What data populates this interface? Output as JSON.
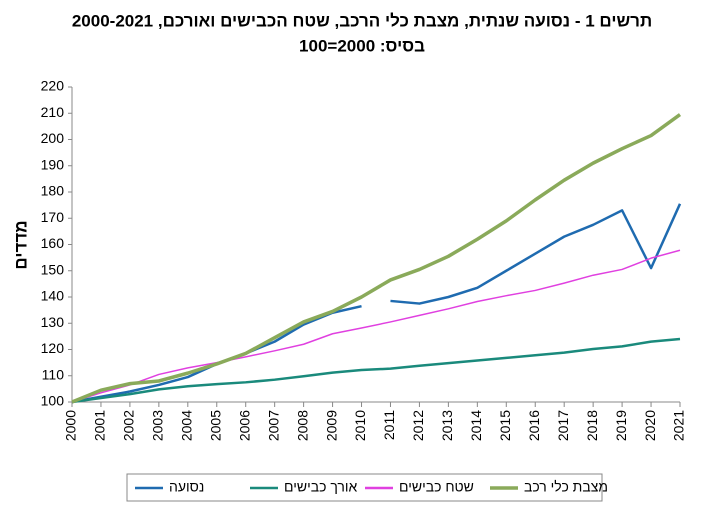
{
  "chart_data": {
    "type": "line",
    "title": "תרשים 1 - נסועה שנתית, מצבת כלי הרכב, שטח הכבישים ואורכם, 2000-2021",
    "subtitle": "בסיס: 2000=100",
    "y_label": "מדדים",
    "x": [
      2000,
      2001,
      2002,
      2003,
      2004,
      2005,
      2006,
      2007,
      2008,
      2009,
      2010,
      2011,
      2012,
      2013,
      2014,
      2015,
      2016,
      2017,
      2018,
      2019,
      2020,
      2021
    ],
    "xlim": [
      2000,
      2021
    ],
    "ylim": [
      100,
      220
    ],
    "yticks": [
      100,
      110,
      120,
      130,
      140,
      150,
      160,
      170,
      180,
      190,
      200,
      210,
      220
    ],
    "legend": "bottom",
    "series": [
      {
        "name": "נסועה",
        "color": "#1f6bb0",
        "x": [
          2000,
          2001,
          2002,
          2003,
          2004,
          2005,
          2006,
          2007,
          2008,
          2009,
          2010,
          null,
          2011,
          2012,
          2013,
          2014,
          2015,
          2016,
          2017,
          2018,
          2019,
          2020,
          2021
        ],
        "values": [
          100,
          102,
          104,
          106.5,
          109.5,
          114.5,
          118.5,
          123,
          129.5,
          134,
          136.5,
          null,
          138.5,
          137.5,
          140,
          143.5,
          150,
          156.5,
          163,
          167.5,
          173,
          151,
          175.5
        ]
      },
      {
        "name": "אורך כבישים",
        "color": "#1a8a7c",
        "values": [
          100,
          101.5,
          103,
          104.8,
          106,
          106.8,
          107.5,
          108.5,
          109.8,
          111.2,
          112.2,
          112.7,
          113.8,
          114.8,
          115.8,
          116.8,
          117.8,
          118.8,
          120.2,
          121.2,
          123,
          124
        ]
      },
      {
        "name": "שטח כבישים",
        "color": "#e040e0",
        "values": [
          100,
          103.5,
          106.5,
          110.5,
          113,
          115,
          117.2,
          119.5,
          122,
          126,
          128.2,
          130.5,
          133,
          135.5,
          138.3,
          140.5,
          142.5,
          145.3,
          148.3,
          150.5,
          154.8,
          157.8
        ]
      },
      {
        "name": "מצבת כלי רכב",
        "color": "#8aaa5a",
        "values": [
          100,
          104.5,
          107,
          108,
          111,
          114.5,
          118.5,
          124.5,
          130.5,
          134.5,
          140,
          146.5,
          150.5,
          155.5,
          162,
          169,
          177,
          184.5,
          191,
          196.5,
          201.5,
          209.5
        ]
      }
    ]
  }
}
